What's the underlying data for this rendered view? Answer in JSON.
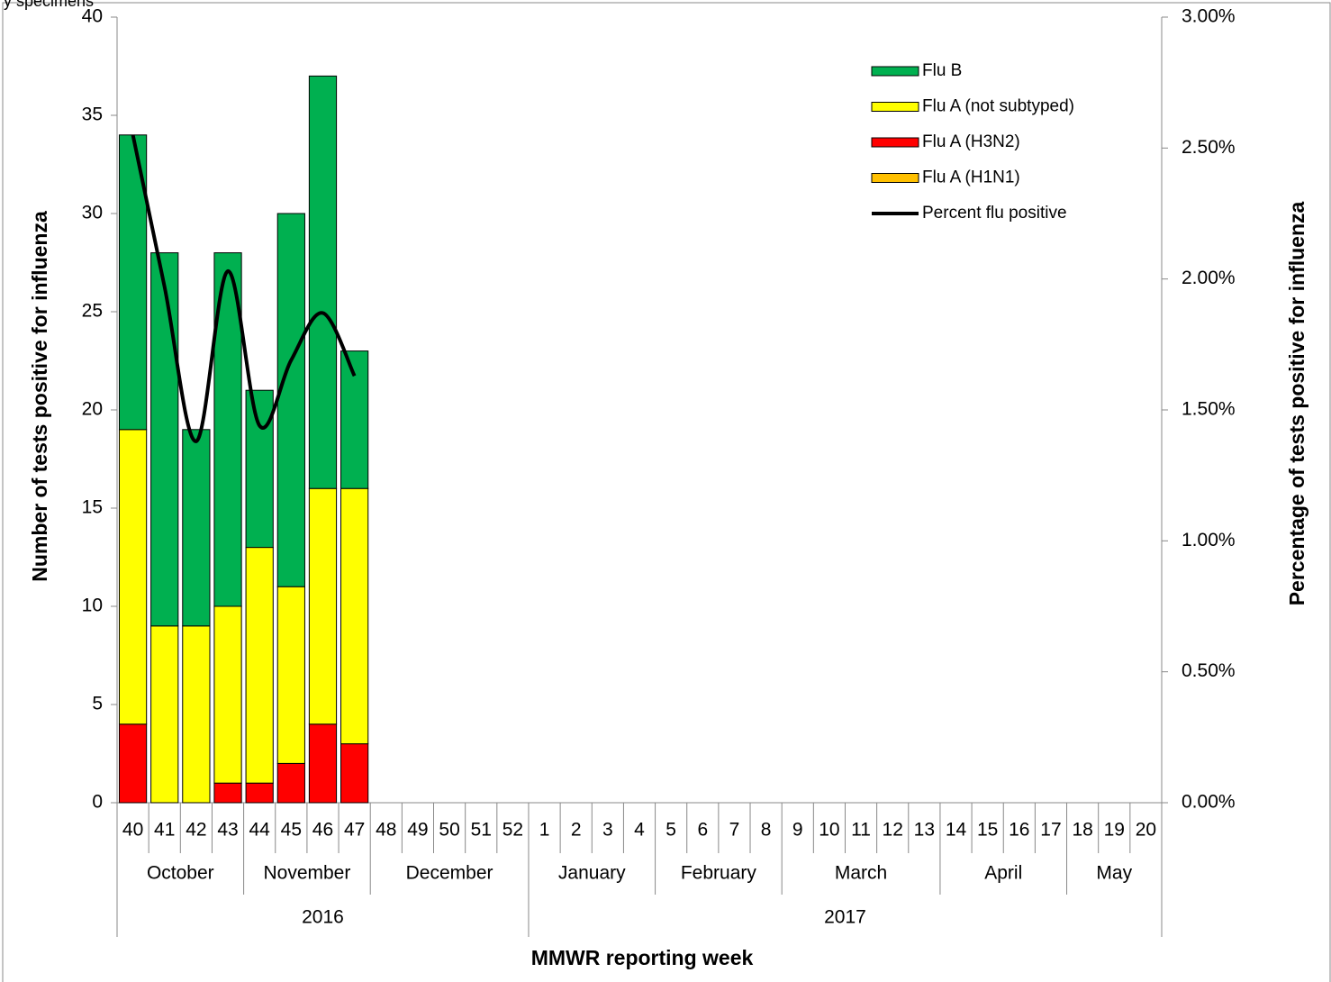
{
  "chart_data": {
    "type": "bar_line",
    "subtitle": "y specimens",
    "y_label": "Number of tests positive for influenza",
    "y2_label": "Percentage  of  tests  positive for influenza",
    "x_label": "MMWR reporting week",
    "categories": [
      "40",
      "41",
      "42",
      "43",
      "44",
      "45",
      "46",
      "47",
      "48",
      "49",
      "50",
      "51",
      "52",
      "1",
      "2",
      "3",
      "4",
      "5",
      "6",
      "7",
      "8",
      "9",
      "10",
      "11",
      "12",
      "13",
      "14",
      "15",
      "16",
      "17",
      "18",
      "19",
      "20"
    ],
    "month_groups": [
      {
        "label": "October",
        "span": 4
      },
      {
        "label": "November",
        "span": 4
      },
      {
        "label": "December",
        "span": 5
      },
      {
        "label": "January",
        "span": 4
      },
      {
        "label": "February",
        "span": 4
      },
      {
        "label": "March",
        "span": 5
      },
      {
        "label": "April",
        "span": 4
      },
      {
        "label": "May",
        "span": 3
      }
    ],
    "year_groups": [
      {
        "label": "2016",
        "span": 13
      },
      {
        "label": "2017",
        "span": 20
      }
    ],
    "series": [
      {
        "name": "Flu B",
        "color": "#00b050",
        "values": [
          15,
          19,
          10,
          18,
          8,
          19,
          21,
          7,
          null,
          null,
          null,
          null,
          null,
          null,
          null,
          null,
          null,
          null,
          null,
          null,
          null,
          null,
          null,
          null,
          null,
          null,
          null,
          null,
          null,
          null,
          null,
          null,
          null
        ]
      },
      {
        "name": "Flu A (not subtyped)",
        "color": "#ffff00",
        "values": [
          15,
          9,
          9,
          9,
          12,
          9,
          12,
          13,
          null,
          null,
          null,
          null,
          null,
          null,
          null,
          null,
          null,
          null,
          null,
          null,
          null,
          null,
          null,
          null,
          null,
          null,
          null,
          null,
          null,
          null,
          null,
          null,
          null
        ]
      },
      {
        "name": "Flu A (H3N2)",
        "color": "#ff0000",
        "values": [
          4,
          0,
          0,
          1,
          1,
          2,
          4,
          3,
          null,
          null,
          null,
          null,
          null,
          null,
          null,
          null,
          null,
          null,
          null,
          null,
          null,
          null,
          null,
          null,
          null,
          null,
          null,
          null,
          null,
          null,
          null,
          null,
          null
        ]
      },
      {
        "name": "Flu A (H1N1)",
        "color": "#ffc000",
        "values": [
          0,
          0,
          0,
          0,
          0,
          0,
          0,
          0,
          null,
          null,
          null,
          null,
          null,
          null,
          null,
          null,
          null,
          null,
          null,
          null,
          null,
          null,
          null,
          null,
          null,
          null,
          null,
          null,
          null,
          null,
          null,
          null,
          null
        ]
      },
      {
        "name": "Percent flu positive",
        "color": "#000000",
        "axis": "y2",
        "type": "line",
        "values": [
          2.55,
          1.97,
          1.38,
          2.03,
          1.44,
          1.69,
          1.87,
          1.63,
          null,
          null,
          null,
          null,
          null,
          null,
          null,
          null,
          null,
          null,
          null,
          null,
          null,
          null,
          null,
          null,
          null,
          null,
          null,
          null,
          null,
          null,
          null,
          null,
          null
        ]
      }
    ],
    "ylim": [
      0,
      40
    ],
    "yticks": [
      0,
      5,
      10,
      15,
      20,
      25,
      30,
      35,
      40
    ],
    "y2lim": [
      0,
      3
    ],
    "y2ticks": [
      {
        "value": 0,
        "label": "0.00%"
      },
      {
        "value": 0.5,
        "label": "0.50%"
      },
      {
        "value": 1,
        "label": "1.00%"
      },
      {
        "value": 1.5,
        "label": "1.50%"
      },
      {
        "value": 2,
        "label": "2.00%"
      },
      {
        "value": 2.5,
        "label": "2.50%"
      },
      {
        "value": 3,
        "label": "3.00%"
      }
    ],
    "legend": "upper right",
    "grid": false
  }
}
